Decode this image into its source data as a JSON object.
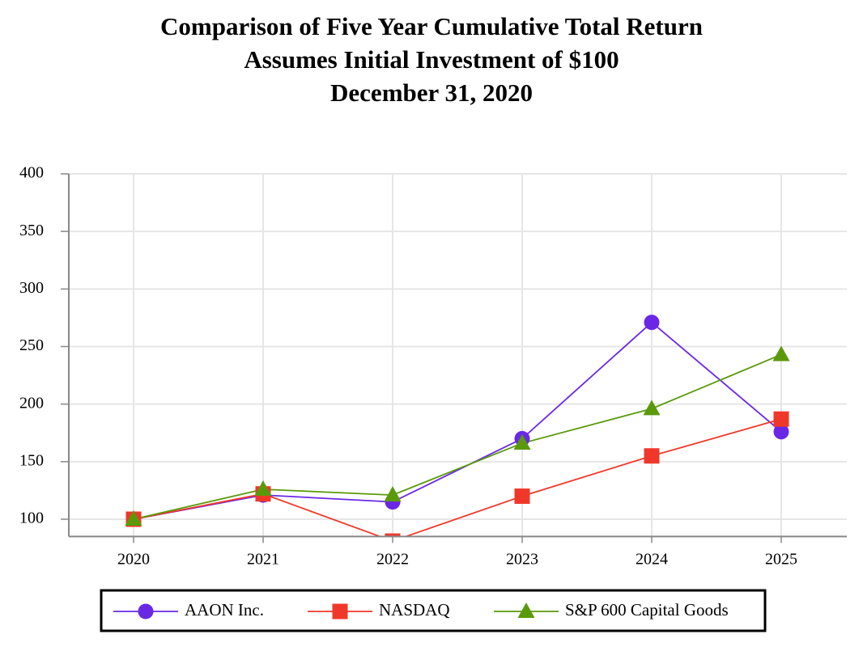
{
  "chart_data": {
    "type": "line",
    "title_lines": [
      "Comparison of Five Year Cumulative Total Return",
      "Assumes Initial Investment of $100",
      "December 31, 2020"
    ],
    "categories": [
      "2020",
      "2021",
      "2022",
      "2023",
      "2024",
      "2025"
    ],
    "series": [
      {
        "name": "AAON Inc.",
        "color": "#6a27e6",
        "marker": "circle",
        "values": [
          100,
          121,
          115,
          170,
          271,
          176
        ]
      },
      {
        "name": "NASDAQ",
        "color": "#f0382a",
        "marker": "square",
        "values": [
          100,
          122,
          81,
          120,
          155,
          187
        ]
      },
      {
        "name": "S&P 600 Capital Goods",
        "color": "#5a9a0a",
        "marker": "triangle",
        "values": [
          100,
          126,
          121,
          166,
          196,
          243
        ]
      }
    ],
    "ylim": [
      85,
      400
    ],
    "yticks": [
      100,
      150,
      200,
      250,
      300,
      350,
      400
    ],
    "grid": true,
    "legend": "bottom"
  }
}
